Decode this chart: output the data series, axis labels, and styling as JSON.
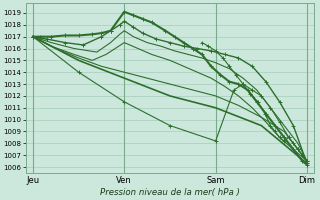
{
  "bg_color": "#cce8dc",
  "grid_color": "#a8ccbc",
  "line_color": "#2d6e2d",
  "ylim": [
    1005.5,
    1019.8
  ],
  "yticks": [
    1006,
    1007,
    1008,
    1009,
    1010,
    1011,
    1012,
    1013,
    1014,
    1015,
    1016,
    1017,
    1018,
    1019
  ],
  "xlabel": "Pression niveau de la mer( hPa )",
  "xtick_labels": [
    "Jeu",
    "Ven",
    "Sam",
    "Dim"
  ],
  "xtick_positions": [
    0,
    1,
    2,
    3
  ],
  "lines": [
    {
      "x": [
        0.0,
        0.08,
        0.2,
        0.35,
        0.5,
        0.65,
        0.75,
        0.85,
        1.0,
        1.1,
        1.2,
        1.3,
        1.45,
        1.55,
        1.65,
        1.75,
        1.85,
        1.95,
        2.05,
        2.15,
        2.25,
        2.35,
        2.45,
        2.55,
        2.65,
        2.75,
        2.85,
        2.95,
        3.0
      ],
      "y": [
        1017.0,
        1017.0,
        1017.0,
        1017.1,
        1017.1,
        1017.2,
        1017.3,
        1017.5,
        1019.1,
        1018.8,
        1018.5,
        1018.2,
        1017.5,
        1017.0,
        1016.5,
        1016.0,
        1015.5,
        1014.5,
        1013.8,
        1013.2,
        1013.0,
        1012.5,
        1011.5,
        1010.5,
        1009.5,
        1008.5,
        1007.5,
        1006.5,
        1006.2
      ],
      "lw": 1.5,
      "marker": true
    },
    {
      "x": [
        0.0,
        0.15,
        0.35,
        0.55,
        0.75,
        0.85,
        0.95,
        1.0,
        1.1,
        1.2,
        1.35,
        1.5,
        1.65,
        1.8,
        1.95,
        2.1,
        2.25,
        2.4,
        2.55,
        2.7,
        2.85,
        3.0
      ],
      "y": [
        1017.0,
        1016.8,
        1016.5,
        1016.3,
        1017.0,
        1017.5,
        1018.0,
        1018.3,
        1017.8,
        1017.3,
        1016.8,
        1016.5,
        1016.2,
        1016.0,
        1015.8,
        1015.5,
        1015.2,
        1014.5,
        1013.2,
        1011.5,
        1009.5,
        1006.3
      ],
      "lw": 1.0,
      "marker": true
    },
    {
      "x": [
        0.0,
        0.2,
        0.45,
        0.7,
        0.85,
        0.95,
        1.0,
        1.1,
        1.25,
        1.4,
        1.55,
        1.7,
        1.85,
        2.0,
        2.15,
        2.3,
        2.45,
        2.6,
        2.75,
        2.9,
        3.0
      ],
      "y": [
        1017.0,
        1016.5,
        1016.0,
        1015.7,
        1016.5,
        1017.2,
        1017.5,
        1017.0,
        1016.5,
        1016.2,
        1015.8,
        1015.5,
        1015.2,
        1014.8,
        1014.3,
        1013.5,
        1012.5,
        1011.0,
        1009.5,
        1008.0,
        1006.5
      ],
      "lw": 0.8,
      "marker": false
    },
    {
      "x": [
        0.0,
        0.2,
        0.45,
        0.65,
        0.8,
        0.9,
        1.0,
        1.15,
        1.3,
        1.5,
        1.65,
        1.8,
        1.95,
        2.1,
        2.25,
        2.4,
        2.55,
        2.7,
        2.85,
        3.0
      ],
      "y": [
        1017.0,
        1016.2,
        1015.5,
        1015.0,
        1015.5,
        1016.0,
        1016.5,
        1016.0,
        1015.5,
        1015.0,
        1014.5,
        1014.0,
        1013.5,
        1012.8,
        1012.0,
        1011.0,
        1009.8,
        1008.5,
        1007.5,
        1006.5
      ],
      "lw": 0.8,
      "marker": false
    },
    {
      "x": [
        0.0,
        0.25,
        0.5,
        0.75,
        1.0,
        1.25,
        1.5,
        1.75,
        2.0,
        2.25,
        2.5,
        2.75,
        3.0
      ],
      "y": [
        1017.0,
        1016.0,
        1015.2,
        1014.5,
        1014.0,
        1013.5,
        1013.0,
        1012.5,
        1012.0,
        1011.2,
        1010.2,
        1009.0,
        1006.5
      ],
      "lw": 0.8,
      "marker": false
    },
    {
      "x": [
        0.0,
        0.5,
        1.0,
        1.5,
        2.0,
        2.5,
        3.0
      ],
      "y": [
        1017.0,
        1015.0,
        1013.5,
        1012.0,
        1011.0,
        1009.5,
        1006.3
      ],
      "lw": 1.2,
      "marker": false
    },
    {
      "x": [
        0.0,
        0.5,
        1.0,
        1.5,
        2.0,
        2.2,
        2.3,
        2.4,
        2.5,
        2.6,
        2.7,
        2.8,
        2.9,
        3.0
      ],
      "y": [
        1017.0,
        1014.0,
        1011.5,
        1009.5,
        1008.2,
        1012.5,
        1013.0,
        1012.5,
        1012.0,
        1011.0,
        1009.8,
        1008.5,
        1007.5,
        1006.5
      ],
      "lw": 0.8,
      "marker": true
    },
    {
      "x": [
        1.85,
        1.92,
        2.0,
        2.08,
        2.15,
        2.22,
        2.3,
        2.38,
        2.46,
        2.54,
        2.6,
        2.65,
        2.7,
        2.75,
        2.8,
        2.85,
        2.9,
        2.95,
        3.0
      ],
      "y": [
        1016.5,
        1016.2,
        1015.8,
        1015.2,
        1014.5,
        1013.8,
        1013.0,
        1012.2,
        1011.5,
        1010.5,
        1009.5,
        1009.0,
        1008.5,
        1008.2,
        1008.5,
        1008.0,
        1007.5,
        1007.0,
        1006.5
      ],
      "lw": 0.8,
      "marker": true
    }
  ]
}
